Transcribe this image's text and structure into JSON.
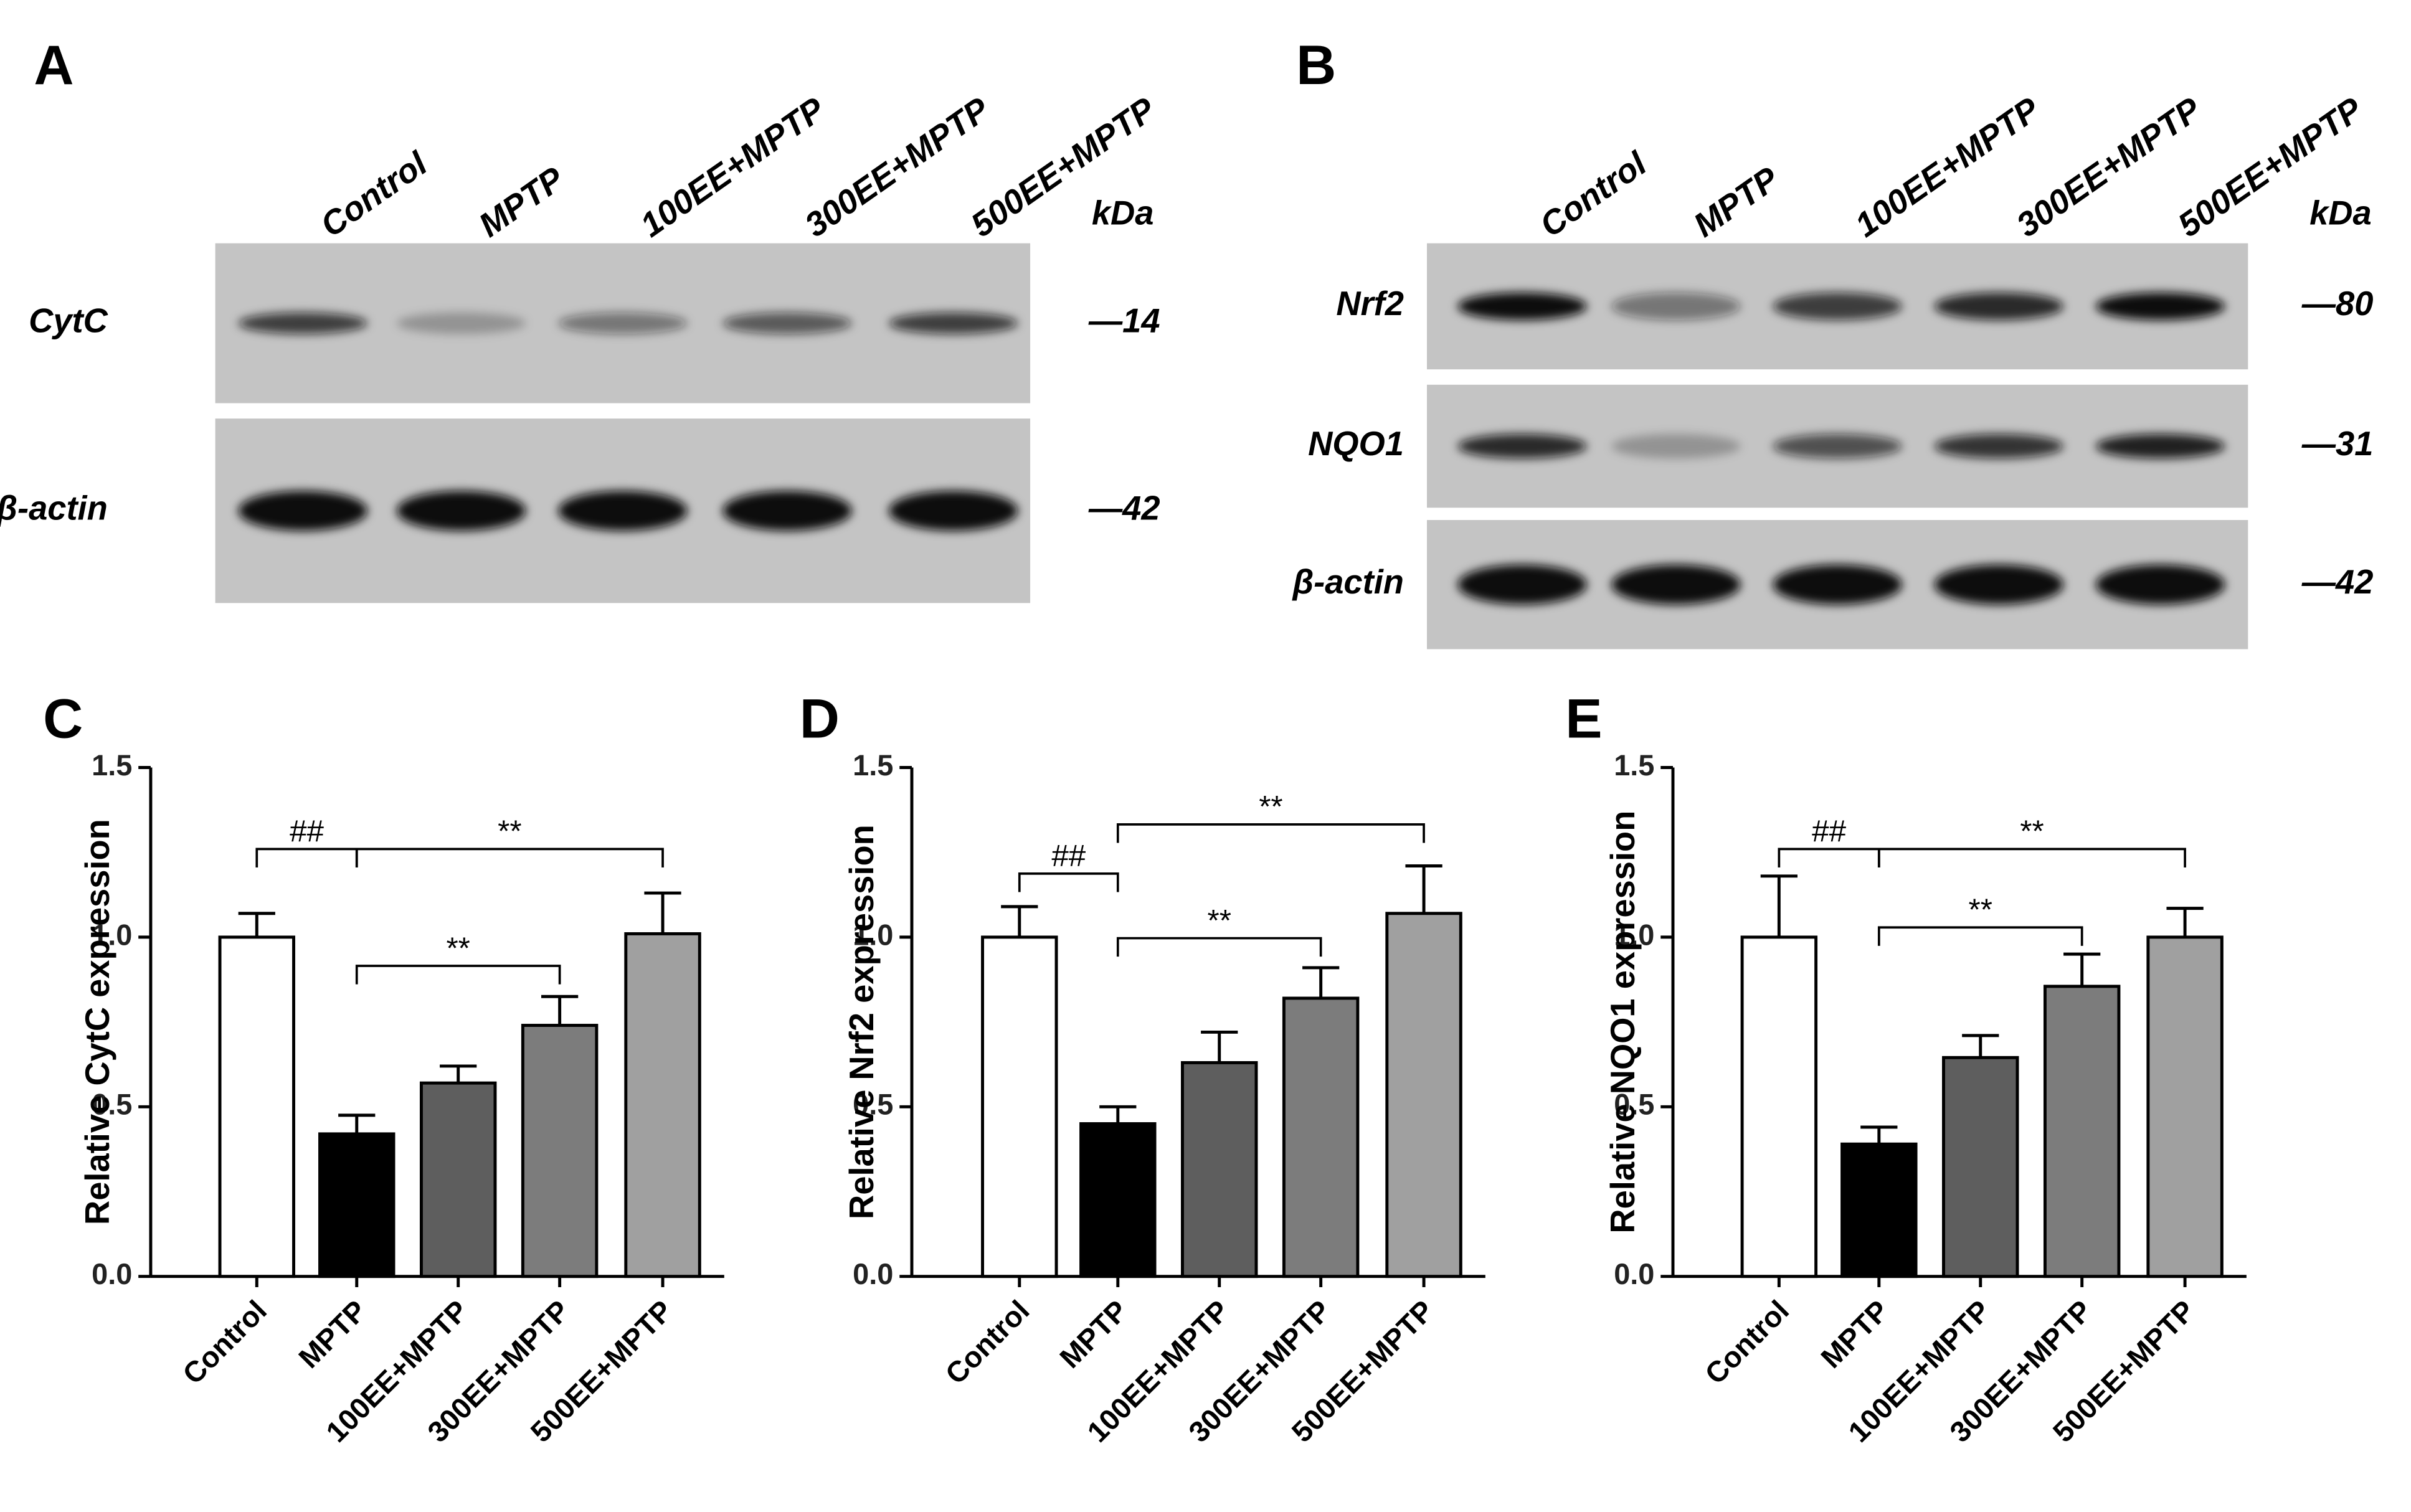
{
  "blots": [
    {
      "panel": "A",
      "lanes": [
        "Control",
        "MPTP",
        "100EE+MPTP",
        "300EE+MPTP",
        "500EE+MPTP"
      ],
      "unit": "kDa",
      "rows": [
        {
          "label": "CytC",
          "marker": "—14"
        },
        {
          "label": "β-actin",
          "marker": "—42"
        }
      ]
    },
    {
      "panel": "B",
      "lanes": [
        "Control",
        "MPTP",
        "100EE+MPTP",
        "300EE+MPTP",
        "500EE+MPTP"
      ],
      "unit": "kDa",
      "rows": [
        {
          "label": "Nrf2",
          "marker": "—80"
        },
        {
          "label": "NQO1",
          "marker": "—31"
        },
        {
          "label": "β-actin",
          "marker": "—42"
        }
      ]
    }
  ],
  "chart_data": [
    {
      "type": "bar",
      "panel": "C",
      "ylabel": "Relative CytC expression",
      "categories": [
        "Control",
        "MPTP",
        "100EE+MPTP",
        "300EE+MPTP",
        "500EE+MPTP"
      ],
      "values": [
        1.0,
        0.42,
        0.57,
        0.74,
        1.01
      ],
      "errors": [
        0.07,
        0.055,
        0.05,
        0.085,
        0.12
      ],
      "colors": [
        "#ffffff",
        "#000000",
        "#5e5e5e",
        "#7c7c7c",
        "#a0a0a0"
      ],
      "ylim": [
        0,
        1.5
      ],
      "yticks": [
        {
          "value": 0,
          "label": "0.0"
        },
        0.5,
        {
          "value": 1,
          "label": "1.0"
        },
        1.5
      ],
      "annotations": [
        "##",
        "**",
        "**"
      ]
    },
    {
      "type": "bar",
      "panel": "D",
      "ylabel": "Relative Nrf2 expression",
      "categories": [
        "Control",
        "MPTP",
        "100EE+MPTP",
        "300EE+MPTP",
        "500EE+MPTP"
      ],
      "values": [
        1.0,
        0.45,
        0.63,
        0.82,
        1.07
      ],
      "errors": [
        0.09,
        0.05,
        0.09,
        0.09,
        0.14
      ],
      "colors": [
        "#ffffff",
        "#000000",
        "#5e5e5e",
        "#7c7c7c",
        "#a0a0a0"
      ],
      "ylim": [
        0,
        1.5
      ],
      "yticks": [
        {
          "value": 0,
          "label": "0.0"
        },
        0.5,
        {
          "value": 1,
          "label": "1.0"
        },
        1.5
      ],
      "annotations": [
        "##",
        "**",
        "**"
      ]
    },
    {
      "type": "bar",
      "panel": "E",
      "ylabel": "Relative NQO1 expression",
      "categories": [
        "Control",
        "MPTP",
        "100EE+MPTP",
        "300EE+MPTP",
        "500EE+MPTP"
      ],
      "values": [
        1.0,
        0.39,
        0.645,
        0.855,
        1.0
      ],
      "errors": [
        0.18,
        0.05,
        0.065,
        0.095,
        0.085
      ],
      "colors": [
        "#ffffff",
        "#000000",
        "#5e5e5e",
        "#7c7c7c",
        "#a0a0a0"
      ],
      "ylim": [
        0,
        1.5
      ],
      "yticks": [
        {
          "value": 0,
          "label": "0.0"
        },
        0.5,
        {
          "value": 1,
          "label": "1.0"
        },
        1.5
      ],
      "annotations": [
        "##",
        "**",
        "**"
      ]
    }
  ]
}
